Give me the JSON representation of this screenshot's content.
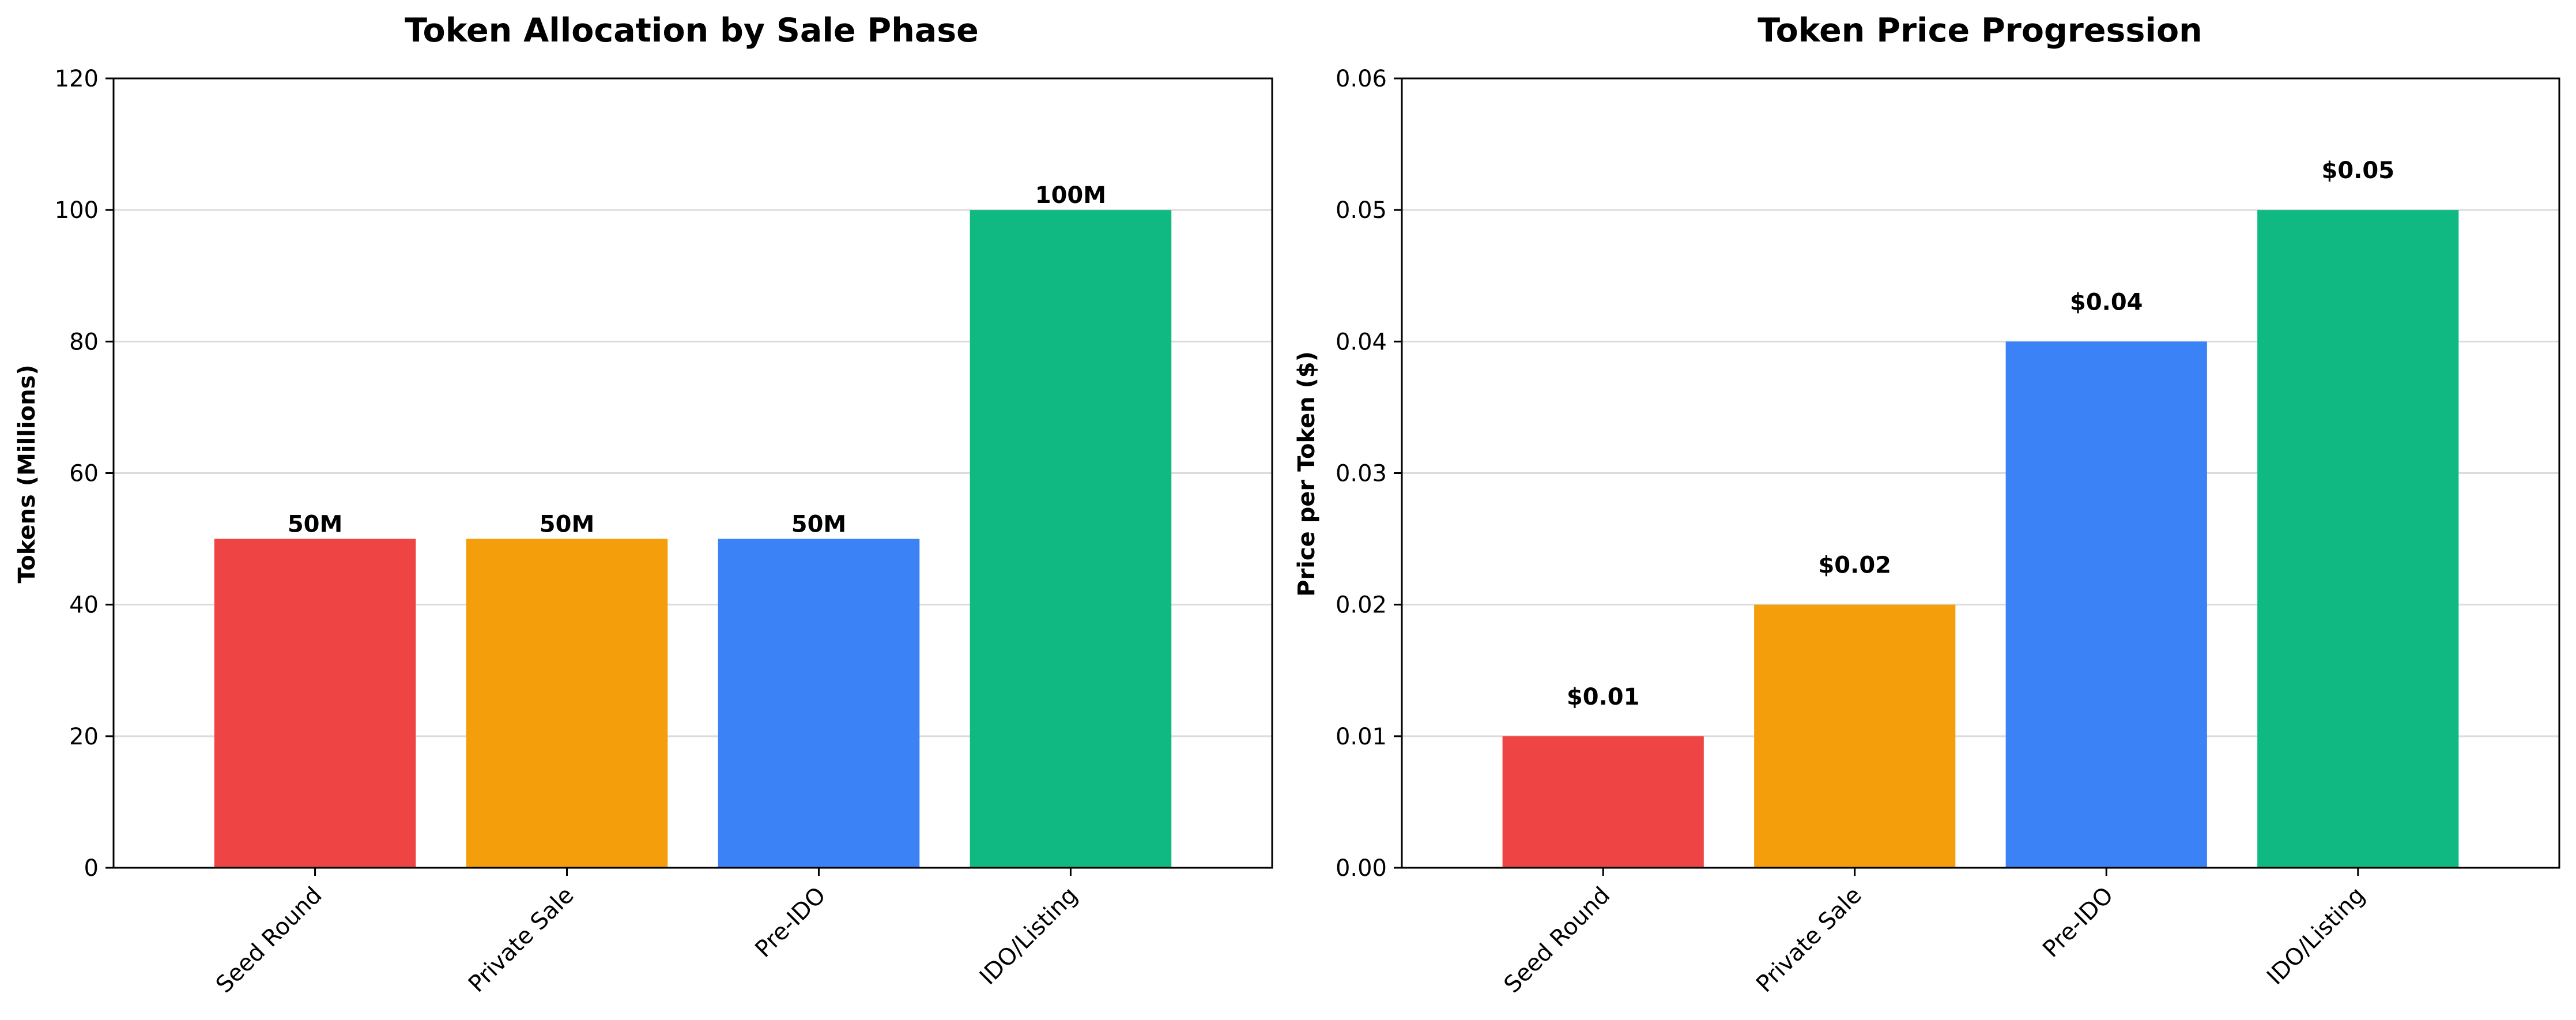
{
  "chart_data": [
    {
      "type": "bar",
      "title": "Token Allocation by Sale Phase",
      "xlabel": "",
      "ylabel": "Tokens (Millions)",
      "categories": [
        "Seed Round",
        "Private Sale",
        "Pre-IDO",
        "IDO/Listing"
      ],
      "values": [
        50,
        50,
        50,
        100
      ],
      "data_labels": [
        "50M",
        "50M",
        "50M",
        "100M"
      ],
      "colors": [
        "#ef4444",
        "#f59e0b",
        "#3b82f6",
        "#10b981"
      ],
      "ylim": [
        0,
        120
      ],
      "yticks": [
        0,
        20,
        40,
        60,
        80,
        100,
        120
      ],
      "ytick_labels": [
        "0",
        "20",
        "40",
        "60",
        "80",
        "100",
        "120"
      ],
      "grid": "y"
    },
    {
      "type": "bar",
      "title": "Token Price Progression",
      "xlabel": "",
      "ylabel": "Price per Token ($)",
      "categories": [
        "Seed Round",
        "Private Sale",
        "Pre-IDO",
        "IDO/Listing"
      ],
      "values": [
        0.01,
        0.02,
        0.04,
        0.05
      ],
      "data_labels": [
        "$0.01",
        "$0.02",
        "$0.04",
        "$0.05"
      ],
      "colors": [
        "#ef4444",
        "#f59e0b",
        "#3b82f6",
        "#10b981"
      ],
      "ylim": [
        0,
        0.06
      ],
      "yticks": [
        0,
        0.01,
        0.02,
        0.03,
        0.04,
        0.05,
        0.06
      ],
      "ytick_labels": [
        "0.00",
        "0.01",
        "0.02",
        "0.03",
        "0.04",
        "0.05",
        "0.06"
      ],
      "grid": "y"
    }
  ]
}
